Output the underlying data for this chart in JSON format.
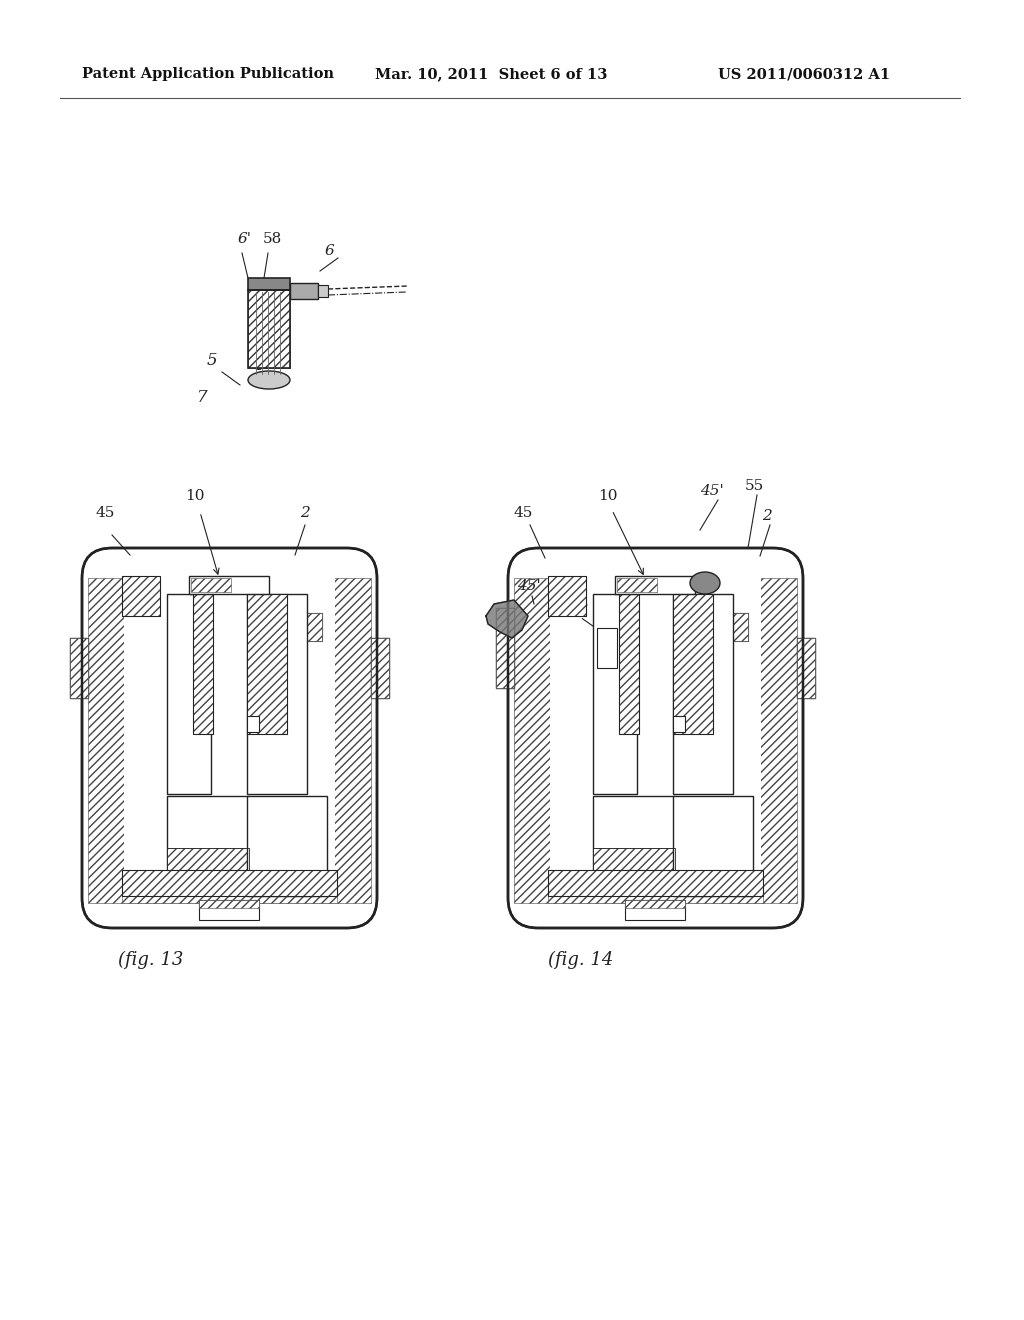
{
  "background_color": "#ffffff",
  "header_left": "Patent Application Publication",
  "header_center": "Mar. 10, 2011  Sheet 6 of 13",
  "header_right": "US 2011/0060312 A1",
  "header_fontsize": 10.5,
  "fig_width": 10.24,
  "fig_height": 13.2,
  "hatch_color": "#444444",
  "line_color": "#222222"
}
